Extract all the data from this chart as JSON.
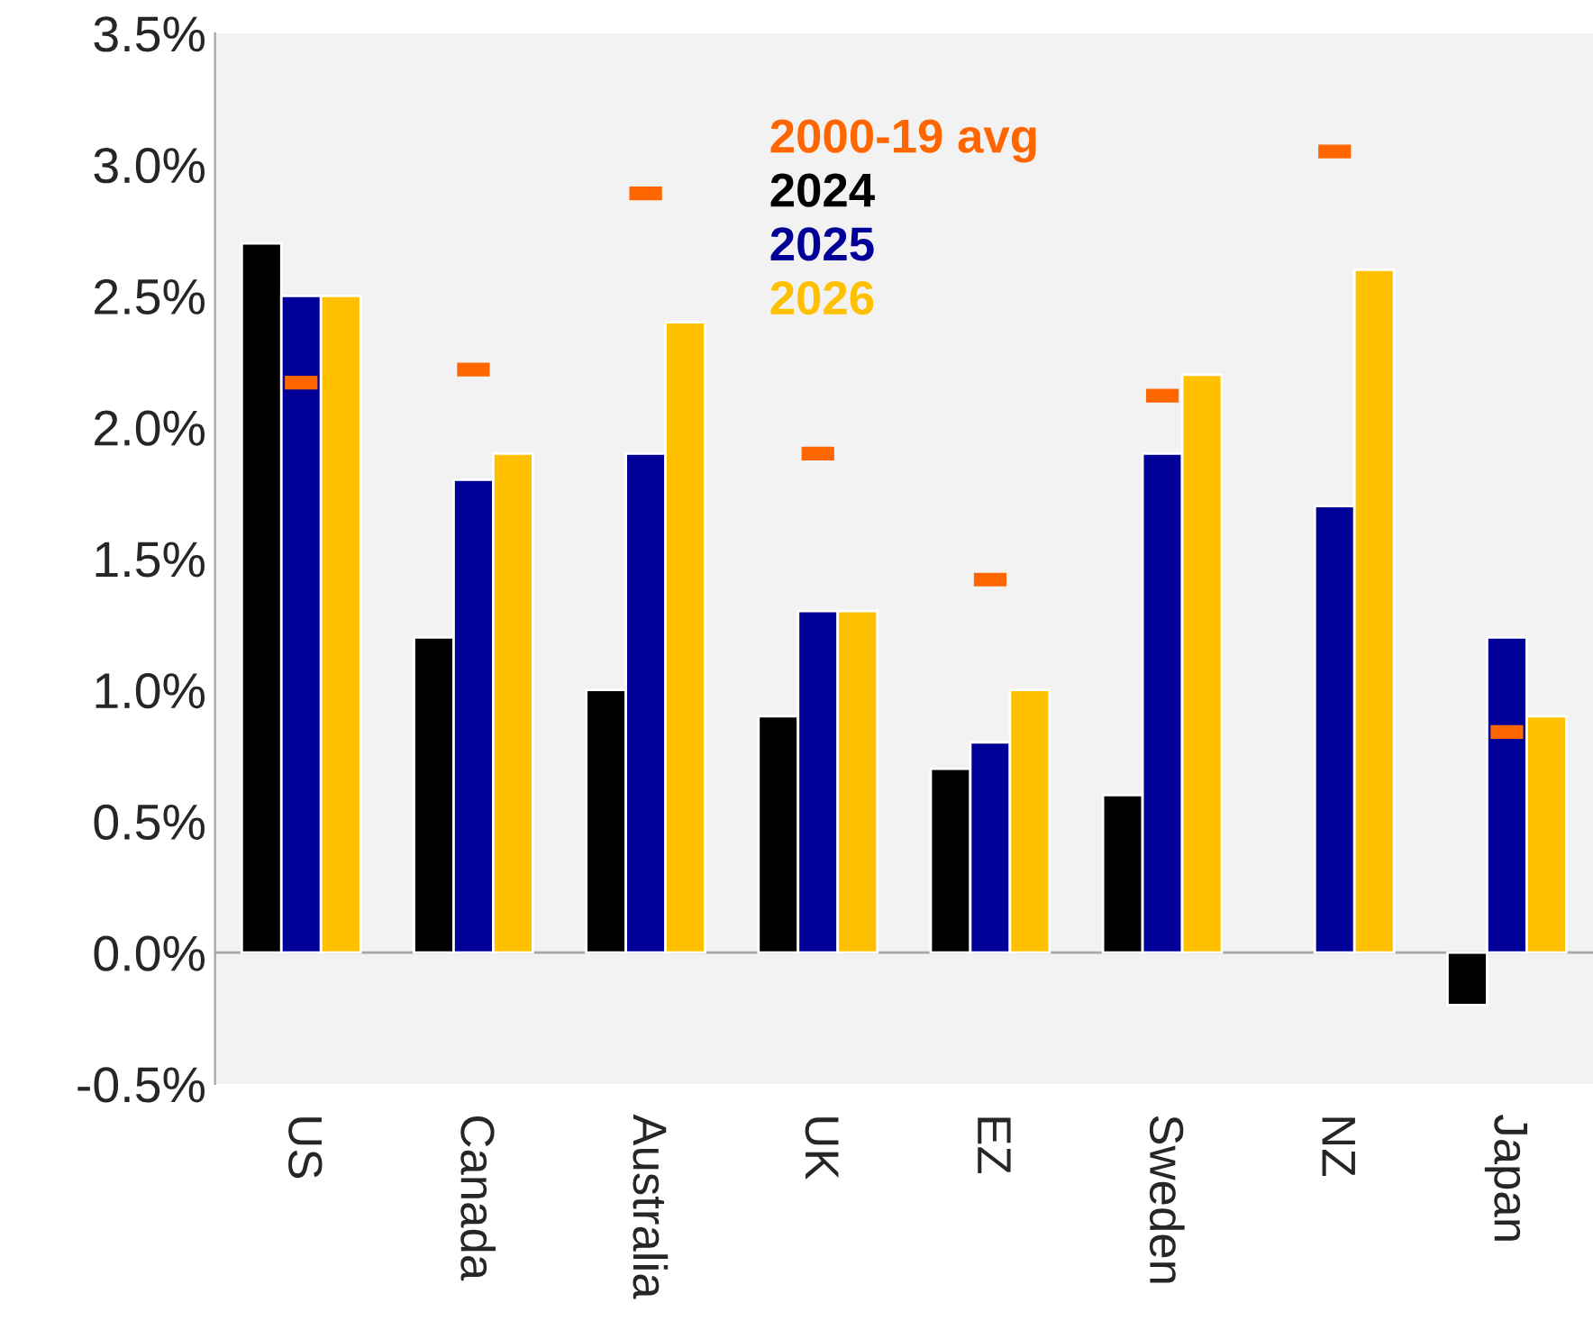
{
  "chart_data": {
    "type": "bar",
    "categories": [
      "US",
      "Canada",
      "Australia",
      "UK",
      "EZ",
      "Sweden",
      "NZ",
      "Japan"
    ],
    "series": [
      {
        "name": "2000-19 avg",
        "type": "scatter",
        "marker": "square",
        "color": "#ff6600",
        "x": [
          "US",
          "Canada",
          "Australia",
          "UK",
          "EZ",
          "Sweden",
          "NZ",
          "Japan"
        ],
        "values": [
          2.17,
          2.22,
          2.89,
          1.9,
          1.42,
          2.12,
          3.05,
          0.84
        ]
      },
      {
        "name": "2024",
        "color": "#000000",
        "values": [
          2.7,
          1.2,
          1.0,
          0.9,
          0.7,
          0.6,
          null,
          -0.2
        ]
      },
      {
        "name": "2025",
        "color": "#000099",
        "values": [
          2.5,
          1.8,
          1.9,
          1.3,
          0.8,
          1.9,
          1.7,
          1.2
        ]
      },
      {
        "name": "2026",
        "color": "#ffc000",
        "values": [
          2.5,
          1.9,
          2.4,
          1.3,
          1.0,
          2.2,
          2.6,
          0.9
        ]
      }
    ],
    "ylim": [
      -0.5,
      3.5
    ],
    "yticks": [
      {
        "value": -0.5,
        "label": "-0.5%"
      },
      {
        "value": 0,
        "label": "0.0%"
      },
      {
        "value": 0.5,
        "label": "0.5%"
      },
      {
        "value": 1,
        "label": "1.0%"
      },
      {
        "value": 1.5,
        "label": "1.5%"
      },
      {
        "value": 2,
        "label": "2.0%"
      },
      {
        "value": 2.5,
        "label": "2.5%"
      },
      {
        "value": 3,
        "label": "3.0%"
      },
      {
        "value": 3.5,
        "label": "3.5%"
      }
    ],
    "ref_lines": [
      {
        "axis": "y",
        "value": 0,
        "color": "#a6a6a6"
      }
    ],
    "grid": false,
    "legend": "top"
  }
}
